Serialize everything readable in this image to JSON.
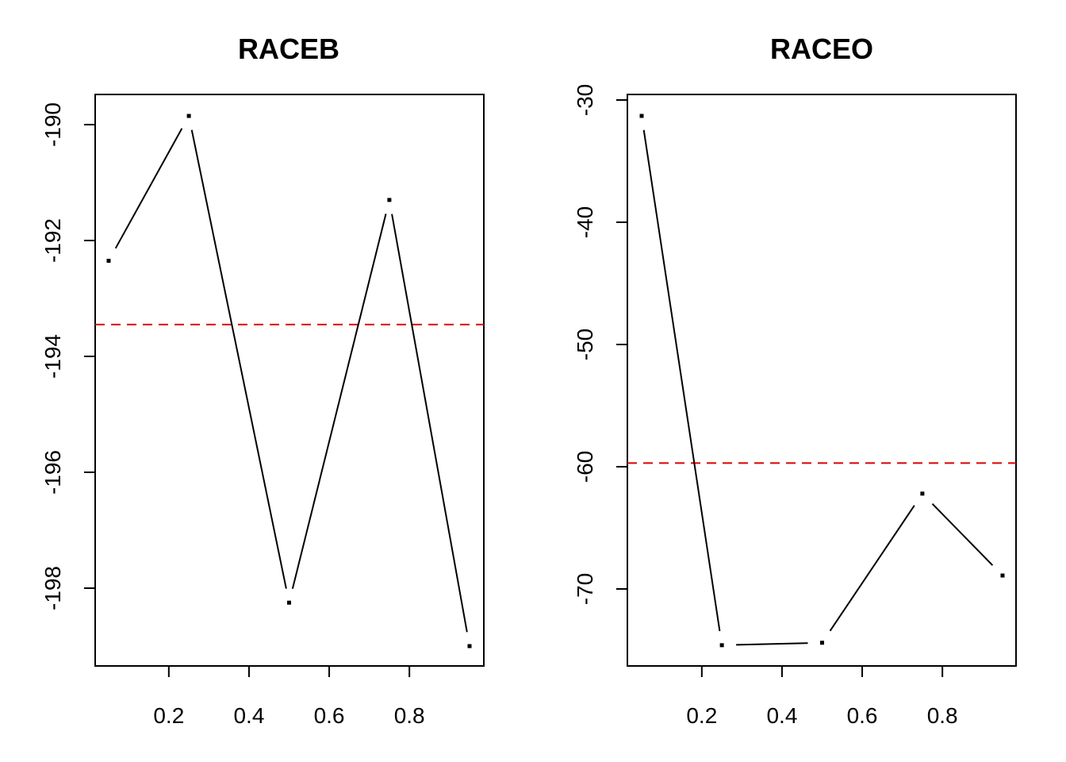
{
  "chart_data": [
    {
      "type": "line",
      "title": "RACEB",
      "xlabel": "",
      "ylabel": "",
      "x_ticks": [
        0.2,
        0.4,
        0.6,
        0.8
      ],
      "x_tick_labels": [
        "0.2",
        "0.4",
        "0.6",
        "0.8"
      ],
      "y_ticks": [
        -198,
        -196,
        -194,
        -192,
        -190
      ],
      "y_tick_labels": [
        "-198",
        "-196",
        "-194",
        "-192",
        "-190"
      ],
      "xlim": [
        0.05,
        0.95
      ],
      "ylim": [
        -199.0,
        -189.9
      ],
      "series": [
        {
          "x": [
            0.05,
            0.25,
            0.5,
            0.75,
            0.95
          ],
          "y": [
            -192.35,
            -189.85,
            -198.25,
            -191.3,
            -199.0
          ]
        }
      ],
      "reference_line": {
        "y": -193.45,
        "style": "dashed",
        "color": "#dd0000"
      },
      "line_style": "broken (type b)",
      "grid": false,
      "legend": "none"
    },
    {
      "type": "line",
      "title": "RACEO",
      "xlabel": "",
      "ylabel": "",
      "x_ticks": [
        0.2,
        0.4,
        0.6,
        0.8
      ],
      "x_tick_labels": [
        "0.2",
        "0.4",
        "0.6",
        "0.8"
      ],
      "y_ticks": [
        -70,
        -60,
        -50,
        -40,
        -30
      ],
      "y_tick_labels": [
        "-70",
        "-60",
        "-50",
        "-40",
        "-30"
      ],
      "xlim": [
        0.05,
        0.95
      ],
      "ylim": [
        -74.7,
        -31.3
      ],
      "series": [
        {
          "x": [
            0.05,
            0.25,
            0.5,
            0.75,
            0.95
          ],
          "y": [
            -31.3,
            -74.6,
            -74.4,
            -62.2,
            -68.9
          ]
        }
      ],
      "reference_line": {
        "y": -59.7,
        "style": "dashed",
        "color": "#dd0000"
      },
      "line_style": "broken (type b)",
      "grid": false,
      "legend": "none"
    }
  ]
}
